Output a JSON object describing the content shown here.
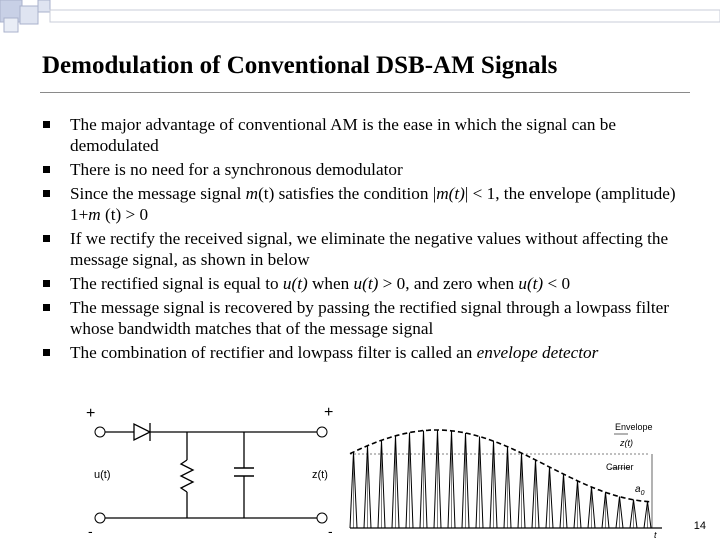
{
  "slide": {
    "title": "Demodulation of Conventional DSB-AM Signals",
    "page_number": "14",
    "bullets": [
      {
        "parts": [
          {
            "t": "The major advantage of conventional AM is the ease in which the signal can be demodulated"
          }
        ]
      },
      {
        "parts": [
          {
            "t": "There is no need for a synchronous demodulator"
          }
        ]
      },
      {
        "parts": [
          {
            "t": "Since the message signal "
          },
          {
            "t": "m",
            "i": true
          },
          {
            "t": "(t) satisfies the condition |"
          },
          {
            "t": "m(t)",
            "i": true
          },
          {
            "t": "| < 1, the envelope (amplitude) 1+"
          },
          {
            "t": "m",
            "i": true
          },
          {
            "t": " (t) > 0"
          }
        ]
      },
      {
        "parts": [
          {
            "t": "If we rectify the received signal, we eliminate the negative values without affecting the message signal, as shown in below"
          }
        ]
      },
      {
        "parts": [
          {
            "t": "The rectified signal is equal to "
          },
          {
            "t": "u(t)",
            "i": true
          },
          {
            "t": " when "
          },
          {
            "t": "u(t)",
            "i": true
          },
          {
            "t": " > 0, and zero when "
          },
          {
            "t": "u(t)",
            "i": true
          },
          {
            "t": " < 0"
          }
        ]
      },
      {
        "parts": [
          {
            "t": "The message signal is recovered by passing the rectified signal through a lowpass filter whose bandwidth matches that of the message signal"
          }
        ]
      },
      {
        "parts": [
          {
            "t": "The combination of  rectifier and lowpass filter is called an "
          },
          {
            "t": "envelope detector",
            "i": true
          }
        ]
      }
    ]
  },
  "circuit": {
    "plus_left": "+",
    "minus_left": "-",
    "plus_right": "+",
    "minus_right": "-",
    "input_label": "u(t)",
    "output_label": "z(t)"
  },
  "waveform": {
    "envelope_label": "Envelope",
    "envelope_signal": "z(t)",
    "carrier_label": "Carrier",
    "dc_label": "a",
    "dc_sub": "0",
    "time_label": "t"
  },
  "colors": {
    "corner_squares": "#c8d0e6",
    "text": "#000000"
  }
}
